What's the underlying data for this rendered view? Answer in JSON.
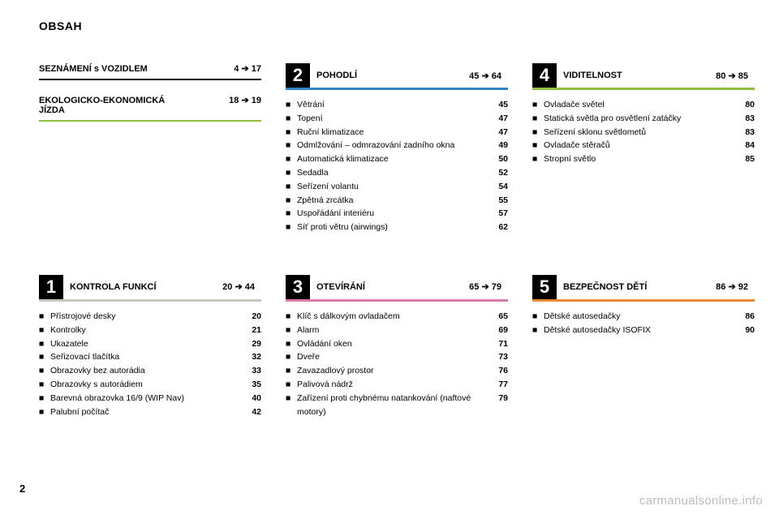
{
  "header": "OBSAH",
  "pageNumber": "2",
  "watermark": "carmanualsonline.info",
  "top": {
    "col1": {
      "plain1": {
        "title": "SEZNÁMENÍ s VOZIDLEM",
        "range_from": "4",
        "range_to": "17"
      },
      "plain2": {
        "title": "EKOLOGICKO-EKONOMICKÁ JÍZDA",
        "range_from": "18",
        "range_to": "19"
      }
    },
    "col2": {
      "num": "2",
      "title": "POHODLÍ",
      "range_from": "45",
      "range_to": "64",
      "bar_color": "bar-blue",
      "items": [
        {
          "label": "Větrání",
          "page": "45"
        },
        {
          "label": "Topení",
          "page": "47"
        },
        {
          "label": "Ruční klimatizace",
          "page": "47"
        },
        {
          "label": "Odmlžování – odmrazování zadního okna",
          "page": "49"
        },
        {
          "label": "Automatická klimatizace",
          "page": "50"
        },
        {
          "label": "Sedadla",
          "page": "52"
        },
        {
          "label": "Seřízení volantu",
          "page": "54"
        },
        {
          "label": "Zpětná zrcátka",
          "page": "55"
        },
        {
          "label": "Uspořádání interiéru",
          "page": "57"
        },
        {
          "label": "Síť proti větru (airwings)",
          "page": "62"
        }
      ]
    },
    "col3": {
      "num": "4",
      "title": "VIDITELNOST",
      "range_from": "80",
      "range_to": "85",
      "bar_color": "bar-green",
      "items": [
        {
          "label": "Ovladače světel",
          "page": "80"
        },
        {
          "label": "Statická světla pro osvětlení zatáčky",
          "page": "83"
        },
        {
          "label": "Seřízení sklonu světlometů",
          "page": "83"
        },
        {
          "label": "Ovladače stěračů",
          "page": "84"
        },
        {
          "label": "Stropní světlo",
          "page": "85"
        }
      ]
    }
  },
  "bottom": {
    "col1": {
      "num": "1",
      "title": "KONTROLA FUNKCÍ",
      "range_from": "20",
      "range_to": "44",
      "bar_color": "bar-gray",
      "items": [
        {
          "label": "Přístrojové desky",
          "page": "20"
        },
        {
          "label": "Kontrolky",
          "page": "21"
        },
        {
          "label": "Ukazatele",
          "page": "29"
        },
        {
          "label": "Seřizovací tlačítka",
          "page": "32"
        },
        {
          "label": "Obrazovky bez autorádia",
          "page": "33"
        },
        {
          "label": "Obrazovky s autorádiem",
          "page": "35"
        },
        {
          "label": "Barevná obrazovka 16/9 (WIP Nav)",
          "page": "40"
        },
        {
          "label": "Palubní počítač",
          "page": "42"
        }
      ]
    },
    "col2": {
      "num": "3",
      "title": "OTEVÍRÁNÍ",
      "range_from": "65",
      "range_to": "79",
      "bar_color": "bar-pink",
      "items": [
        {
          "label": "Klíč s dálkovým ovladačem",
          "page": "65"
        },
        {
          "label": "Alarm",
          "page": "69"
        },
        {
          "label": "Ovládání oken",
          "page": "71"
        },
        {
          "label": "Dveře",
          "page": "73"
        },
        {
          "label": "Zavazadlový prostor",
          "page": "76"
        },
        {
          "label": "Palivová nádrž",
          "page": "77"
        },
        {
          "label": "Zařízení proti chybnému natankování (naftové motory)",
          "page": "79"
        }
      ]
    },
    "col3": {
      "num": "5",
      "title": "BEZPEČNOST DĚTÍ",
      "range_from": "86",
      "range_to": "92",
      "bar_color": "bar-orange",
      "items": [
        {
          "label": "Dětské autosedačky",
          "page": "86"
        },
        {
          "label": "Dětské autosedačky ISOFIX",
          "page": "90"
        }
      ]
    }
  }
}
